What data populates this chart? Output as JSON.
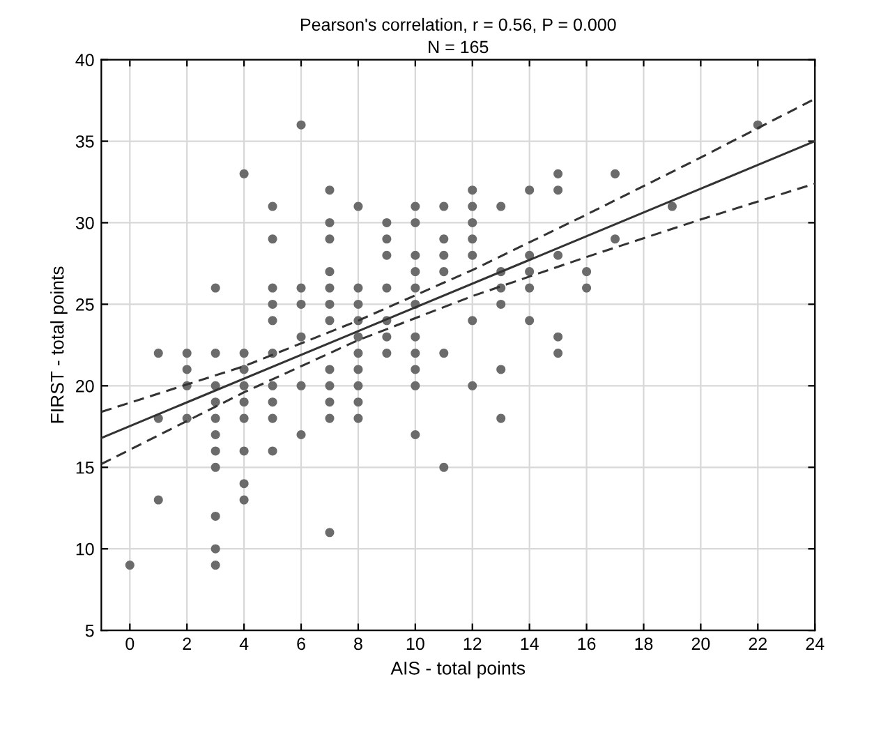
{
  "chart_data": {
    "type": "scatter",
    "title": "Pearson's correlation, r = 0.56, P = 0.000",
    "subtitle": "N = 165",
    "xlabel": "AIS - total points",
    "ylabel": "FIRST - total points",
    "xlim": [
      -1,
      24
    ],
    "xticks": [
      0,
      2,
      4,
      6,
      8,
      10,
      12,
      14,
      16,
      18,
      20,
      22,
      24
    ],
    "ylim": [
      5,
      40
    ],
    "yticks": [
      5,
      10,
      15,
      20,
      25,
      30,
      35,
      40
    ],
    "grid": true,
    "marker": "circle",
    "series": [
      {
        "color": "#6b6b6b",
        "x": [
          0,
          1,
          1,
          1,
          2,
          2,
          2,
          2,
          3,
          3,
          3,
          3,
          3,
          3,
          3,
          3,
          3,
          3,
          3,
          4,
          4,
          4,
          4,
          4,
          4,
          4,
          4,
          4,
          5,
          5,
          5,
          5,
          5,
          5,
          5,
          5,
          5,
          5,
          6,
          6,
          6,
          6,
          6,
          6,
          7,
          7,
          7,
          7,
          7,
          7,
          7,
          7,
          7,
          7,
          7,
          7,
          8,
          8,
          8,
          8,
          8,
          8,
          8,
          8,
          8,
          8,
          9,
          9,
          9,
          9,
          9,
          9,
          9,
          10,
          10,
          10,
          10,
          10,
          10,
          10,
          10,
          10,
          10,
          10,
          11,
          11,
          11,
          11,
          11,
          11,
          12,
          12,
          12,
          12,
          12,
          12,
          12,
          13,
          13,
          13,
          13,
          13,
          13,
          14,
          14,
          14,
          14,
          14,
          15,
          15,
          15,
          15,
          15,
          16,
          16,
          17,
          17,
          19,
          22
        ],
        "values": [
          9,
          22,
          18,
          13,
          22,
          21,
          20,
          18,
          26,
          22,
          20,
          19,
          18,
          17,
          16,
          15,
          12,
          10,
          9,
          33,
          22,
          21,
          20,
          19,
          18,
          16,
          14,
          13,
          31,
          29,
          26,
          25,
          24,
          22,
          20,
          19,
          18,
          16,
          36,
          26,
          25,
          23,
          20,
          17,
          32,
          30,
          29,
          27,
          26,
          25,
          24,
          21,
          20,
          19,
          18,
          11,
          31,
          26,
          25,
          24,
          23,
          22,
          21,
          20,
          19,
          18,
          30,
          29,
          28,
          26,
          24,
          23,
          22,
          31,
          30,
          28,
          27,
          26,
          25,
          23,
          22,
          21,
          20,
          17,
          31,
          29,
          28,
          27,
          22,
          15,
          32,
          31,
          30,
          29,
          28,
          24,
          20,
          31,
          27,
          26,
          25,
          21,
          18,
          32,
          28,
          27,
          26,
          24,
          33,
          32,
          28,
          23,
          22,
          27,
          26,
          33,
          29,
          31,
          36
        ]
      },
      {
        "type": "line",
        "color": "#333333",
        "line_style": "solid",
        "marker": "none",
        "x": [
          -1,
          24
        ],
        "values": [
          16.8,
          35.0
        ]
      },
      {
        "type": "line",
        "color": "#333333",
        "line_style": "dashed",
        "marker": "none",
        "x": [
          -1,
          4,
          8,
          12,
          16,
          20,
          24
        ],
        "values": [
          18.4,
          21.2,
          24.0,
          27.1,
          30.5,
          34.0,
          37.6
        ]
      },
      {
        "type": "line",
        "color": "#333333",
        "line_style": "dashed",
        "marker": "none",
        "x": [
          -1,
          4,
          8,
          12,
          16,
          20,
          24
        ],
        "values": [
          15.2,
          19.6,
          22.8,
          25.5,
          27.9,
          30.2,
          32.4
        ]
      }
    ]
  }
}
